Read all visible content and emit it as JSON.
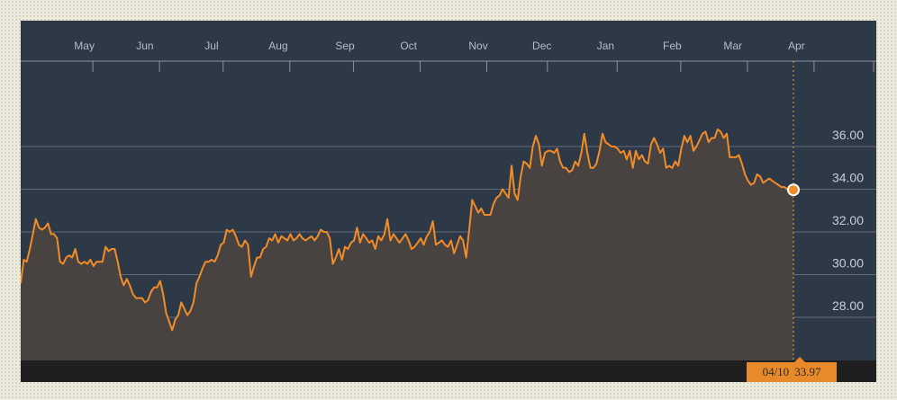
{
  "chart_data": {
    "type": "area",
    "title": "",
    "xlabel": "",
    "ylabel": "",
    "x_tick_labels": [
      "May",
      "Jun",
      "Jul",
      "Aug",
      "Sep",
      "Oct",
      "Nov",
      "Dec",
      "Jan",
      "Feb",
      "Mar",
      "Apr"
    ],
    "y_tick_labels": [
      "28.00",
      "30.00",
      "32.00",
      "34.00",
      "36.00"
    ],
    "y_ticks": [
      28,
      30,
      32,
      34,
      36
    ],
    "ylim": [
      26.0,
      37.5
    ],
    "grid": true,
    "x_unit": "trading-day index (about 252 sessions, Apr 10 to Apr 10)",
    "series": [
      {
        "color": "#f28c28",
        "fill": "#4a4240",
        "values": [
          29.6,
          30.7,
          30.6,
          31.2,
          31.9,
          32.6,
          32.2,
          32.1,
          32.2,
          32.4,
          31.9,
          31.9,
          31.7,
          30.6,
          30.5,
          30.8,
          30.9,
          30.8,
          31.2,
          30.6,
          30.5,
          30.6,
          30.5,
          30.7,
          30.4,
          30.6,
          30.6,
          30.6,
          31.3,
          31.1,
          31.2,
          31.2,
          30.6,
          29.9,
          29.5,
          29.8,
          29.5,
          29.1,
          28.9,
          28.9,
          28.9,
          28.7,
          28.8,
          29.2,
          29.4,
          29.4,
          29.7,
          29.1,
          28.2,
          27.8,
          27.4,
          27.9,
          28.1,
          28.7,
          28.4,
          28.1,
          28.3,
          28.7,
          29.6,
          29.9,
          30.3,
          30.6,
          30.6,
          30.7,
          30.6,
          30.9,
          31.4,
          31.5,
          32.1,
          32.0,
          32.1,
          31.8,
          31.4,
          31.3,
          31.6,
          31.4,
          29.9,
          30.4,
          30.8,
          30.8,
          31.2,
          31.3,
          31.7,
          31.6,
          31.9,
          31.5,
          31.8,
          31.7,
          31.6,
          31.9,
          31.6,
          31.7,
          31.9,
          31.7,
          31.6,
          31.7,
          31.8,
          31.6,
          31.8,
          32.1,
          32.0,
          32.0,
          31.7,
          30.5,
          30.8,
          31.2,
          30.7,
          31.3,
          31.2,
          31.5,
          31.6,
          32.2,
          31.5,
          31.9,
          31.7,
          31.5,
          31.6,
          31.2,
          31.8,
          31.6,
          31.9,
          32.6,
          31.6,
          31.9,
          31.7,
          31.5,
          31.7,
          31.9,
          31.6,
          31.2,
          31.3,
          31.5,
          31.7,
          31.4,
          31.8,
          32.0,
          32.5,
          31.4,
          31.5,
          31.6,
          31.4,
          31.3,
          31.6,
          31.0,
          31.4,
          31.8,
          31.6,
          30.8,
          32.1,
          33.5,
          33.2,
          32.9,
          33.1,
          32.8,
          32.8,
          32.8,
          33.3,
          33.6,
          33.7,
          34.0,
          33.8,
          33.6,
          35.1,
          33.8,
          33.5,
          34.6,
          35.3,
          35.2,
          35.0,
          36.0,
          36.5,
          36.1,
          35.1,
          35.7,
          35.8,
          35.8,
          35.7,
          35.9,
          35.3,
          35.0,
          35.0,
          34.8,
          34.9,
          35.3,
          35.1,
          35.7,
          36.6,
          35.7,
          35.0,
          35.0,
          35.2,
          35.8,
          36.6,
          36.2,
          36.1,
          36.0,
          36.0,
          35.9,
          35.7,
          35.8,
          35.4,
          35.8,
          35.0,
          35.8,
          35.4,
          35.6,
          35.3,
          35.2,
          36.1,
          36.4,
          36.1,
          35.7,
          35.9,
          35.0,
          35.1,
          35.0,
          35.3,
          35.1,
          35.9,
          36.5,
          36.2,
          36.5,
          35.8,
          36.0,
          36.3,
          36.6,
          36.7,
          36.2,
          36.4,
          36.4,
          36.8,
          36.7,
          36.4,
          36.6,
          35.5,
          35.5,
          35.5,
          35.6,
          35.2,
          34.7,
          34.4,
          34.2,
          34.3,
          34.7,
          34.6,
          34.3,
          34.4,
          34.5,
          34.4,
          34.3,
          34.2,
          34.1,
          34.1,
          34.0,
          33.9,
          33.97
        ]
      }
    ],
    "last_point": {
      "date": "04/10",
      "value": 33.97
    }
  },
  "tooltip": {
    "date": "04/10",
    "value": "33.97"
  },
  "colors": {
    "background": "#2e3948",
    "line": "#f28c28",
    "area": "#4a4240",
    "grid": "#6b7480",
    "tag": "#e8892a"
  }
}
